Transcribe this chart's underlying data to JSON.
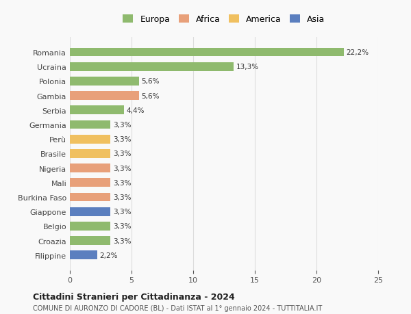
{
  "categories": [
    "Filippine",
    "Croazia",
    "Belgio",
    "Giappone",
    "Burkina Faso",
    "Mali",
    "Nigeria",
    "Brasile",
    "Perù",
    "Germania",
    "Serbia",
    "Gambia",
    "Polonia",
    "Ucraina",
    "Romania"
  ],
  "values": [
    2.2,
    3.3,
    3.3,
    3.3,
    3.3,
    3.3,
    3.3,
    3.3,
    3.3,
    3.3,
    4.4,
    5.6,
    5.6,
    13.3,
    22.2
  ],
  "labels": [
    "2,2%",
    "3,3%",
    "3,3%",
    "3,3%",
    "3,3%",
    "3,3%",
    "3,3%",
    "3,3%",
    "3,3%",
    "3,3%",
    "4,4%",
    "5,6%",
    "5,6%",
    "13,3%",
    "22,2%"
  ],
  "colors": [
    "#5b7fbf",
    "#8fba6e",
    "#8fba6e",
    "#5b7fbf",
    "#e8a07a",
    "#e8a07a",
    "#e8a07a",
    "#f0c060",
    "#f0c060",
    "#8fba6e",
    "#8fba6e",
    "#e8a07a",
    "#8fba6e",
    "#8fba6e",
    "#8fba6e"
  ],
  "legend": [
    {
      "label": "Europa",
      "color": "#8fba6e"
    },
    {
      "label": "Africa",
      "color": "#e8a07a"
    },
    {
      "label": "America",
      "color": "#f0c060"
    },
    {
      "label": "Asia",
      "color": "#5b7fbf"
    }
  ],
  "title": "Cittadini Stranieri per Cittadinanza - 2024",
  "subtitle": "COMUNE DI AURONZO DI CADORE (BL) - Dati ISTAT al 1° gennaio 2024 - TUTTITALIA.IT",
  "xlim": [
    0,
    25
  ],
  "xticks": [
    0,
    5,
    10,
    15,
    20,
    25
  ],
  "background_color": "#f9f9f9",
  "grid_color": "#dddddd"
}
